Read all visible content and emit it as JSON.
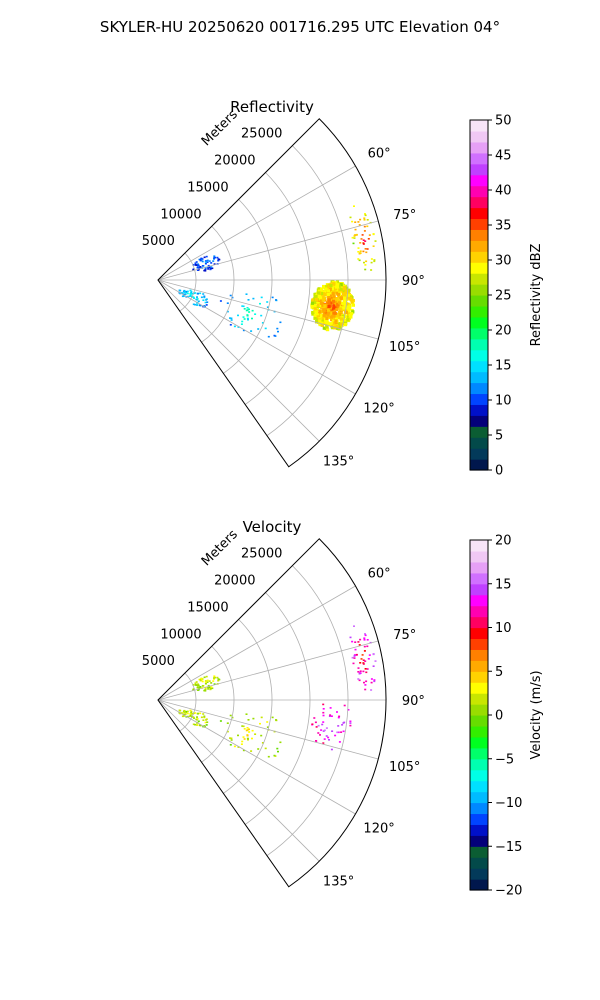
{
  "page": {
    "title": "SKYLER-HU  20250620  001716.295 UTC Elevation 04°"
  },
  "chart_data": [
    {
      "type": "polar-sector",
      "title": "Reflectivity",
      "range_label": "Meters",
      "angle_range_deg": [
        45,
        145
      ],
      "range_max_m": 30000,
      "range_ticks": [
        "5000",
        "10000",
        "15000",
        "20000",
        "25000"
      ],
      "range_tick_values": [
        5000,
        10000,
        15000,
        20000,
        25000
      ],
      "angle_ticks": [
        "60°",
        "75°",
        "90°",
        "105°",
        "120°",
        "135°"
      ],
      "angle_tick_values": [
        60,
        75,
        90,
        105,
        120,
        135
      ],
      "grid": true,
      "echoes": [
        {
          "name": "main-cell",
          "az": 98,
          "r": 23000,
          "dAz": 8,
          "dR": 5500,
          "value": 28,
          "peak": 34
        },
        {
          "name": "north-cell",
          "az": 78,
          "r": 27500,
          "dAz": 10,
          "dR": 3000,
          "value": 26,
          "peak": 38
        },
        {
          "name": "near-field-west",
          "az": 115,
          "r": 5000,
          "dAz": 10,
          "dR": 4500,
          "value": 12,
          "peak": 16
        },
        {
          "name": "near-field-north",
          "az": 70,
          "r": 6500,
          "dAz": 8,
          "dR": 4000,
          "value": 9,
          "peak": 12
        },
        {
          "name": "mid-clutter",
          "az": 110,
          "r": 13000,
          "dAz": 14,
          "dR": 9000,
          "value": 12,
          "peak": 18
        }
      ],
      "colorbar": {
        "label": "Reflectivity dBZ",
        "min": 0,
        "max": 50,
        "ticks": [
          0,
          5,
          10,
          15,
          20,
          25,
          30,
          35,
          40,
          45,
          50
        ],
        "tick_labels": [
          "0",
          "5",
          "10",
          "15",
          "20",
          "25",
          "30",
          "35",
          "40",
          "45",
          "50"
        ],
        "colors": [
          "#00174d",
          "#033a5a",
          "#034a4a",
          "#0b5d33",
          "#04007a",
          "#0010c8",
          "#0044ff",
          "#0088ff",
          "#00bbff",
          "#00e0ff",
          "#00ffe6",
          "#00ffb0",
          "#00ff6a",
          "#00ff20",
          "#33ee00",
          "#66dd00",
          "#99dd00",
          "#c8e600",
          "#ffff00",
          "#ffd200",
          "#ffaa00",
          "#ff8000",
          "#ff4000",
          "#ff0000",
          "#ff0060",
          "#ff00b0",
          "#ff00ff",
          "#c040ff",
          "#d070ff",
          "#e6a0f6",
          "#f0c8f4",
          "#f8e4f8"
        ]
      }
    },
    {
      "type": "polar-sector",
      "title": "Velocity",
      "range_label": "Meters",
      "angle_range_deg": [
        45,
        145
      ],
      "range_max_m": 30000,
      "range_ticks": [
        "5000",
        "10000",
        "15000",
        "20000",
        "25000"
      ],
      "range_tick_values": [
        5000,
        10000,
        15000,
        20000,
        25000
      ],
      "angle_ticks": [
        "60°",
        "75°",
        "90°",
        "105°",
        "120°",
        "135°"
      ],
      "angle_tick_values": [
        60,
        75,
        90,
        105,
        120,
        135
      ],
      "grid": true,
      "echoes": [
        {
          "name": "main-cell",
          "az": 98,
          "r": 23000,
          "dAz": 8,
          "dR": 5500,
          "value": 12,
          "peak": 16
        },
        {
          "name": "north-cell",
          "az": 78,
          "r": 27500,
          "dAz": 10,
          "dR": 3000,
          "value": 14,
          "peak": 9
        },
        {
          "name": "near-field-west",
          "az": 115,
          "r": 5000,
          "dAz": 10,
          "dR": 4500,
          "value": 1,
          "peak": 2
        },
        {
          "name": "near-field-north",
          "az": 70,
          "r": 6500,
          "dAz": 8,
          "dR": 4000,
          "value": 1,
          "peak": 2
        },
        {
          "name": "mid-clutter",
          "az": 110,
          "r": 13000,
          "dAz": 14,
          "dR": 9000,
          "value": 1,
          "peak": 3
        }
      ],
      "colorbar": {
        "label": "Velocity (m/s)",
        "min": -20,
        "max": 20,
        "ticks": [
          -20,
          -15,
          -10,
          -5,
          0,
          5,
          10,
          15,
          20
        ],
        "tick_labels": [
          "−20",
          "−15",
          "−10",
          "−5",
          "0",
          "5",
          "10",
          "15",
          "20"
        ],
        "colors": [
          "#00174d",
          "#033a5a",
          "#034a4a",
          "#0b5d33",
          "#04007a",
          "#0010c8",
          "#0044ff",
          "#0088ff",
          "#00bbff",
          "#00e0ff",
          "#00ffe6",
          "#00ffb0",
          "#00ff6a",
          "#00ff20",
          "#33ee00",
          "#66dd00",
          "#99dd00",
          "#c8e600",
          "#ffff00",
          "#ffd200",
          "#ffaa00",
          "#ff8000",
          "#ff4000",
          "#ff0000",
          "#ff0060",
          "#ff00b0",
          "#ff00ff",
          "#c040ff",
          "#d070ff",
          "#e6a0f6",
          "#f0c8f4",
          "#f8e4f8"
        ]
      }
    }
  ]
}
